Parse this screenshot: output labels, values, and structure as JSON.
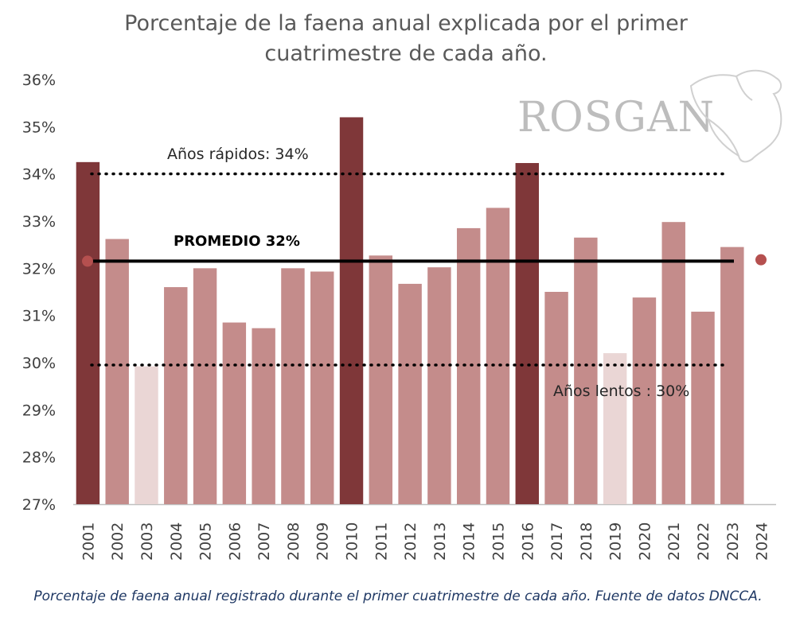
{
  "chart_data": {
    "type": "bar",
    "title": "Porcentaje de la faena anual explicada por el primer cuatrimestre de cada año.",
    "title_lines": [
      "Porcentaje de la faena anual explicada por el primer",
      "cuatrimestre de cada año."
    ],
    "categories": [
      "2001",
      "2002",
      "2003",
      "2004",
      "2005",
      "2006",
      "2007",
      "2008",
      "2009",
      "2010",
      "2011",
      "2012",
      "2013",
      "2014",
      "2015",
      "2016",
      "2017",
      "2018",
      "2019",
      "2020",
      "2021",
      "2022",
      "2023",
      "2024"
    ],
    "values": [
      34.25,
      32.62,
      29.92,
      31.6,
      32.0,
      30.85,
      30.73,
      32.0,
      31.93,
      35.2,
      32.27,
      31.67,
      32.02,
      32.85,
      33.28,
      34.23,
      31.5,
      32.65,
      30.2,
      31.38,
      32.98,
      31.08,
      32.45,
      null
    ],
    "bar_types": [
      "fast",
      "normal",
      "slow",
      "normal",
      "normal",
      "normal",
      "normal",
      "normal",
      "normal",
      "fast",
      "normal",
      "normal",
      "normal",
      "normal",
      "normal",
      "fast",
      "normal",
      "normal",
      "slow",
      "normal",
      "normal",
      "normal",
      "normal",
      "none"
    ],
    "ylim": [
      27,
      36
    ],
    "y_ticks": [
      "27%",
      "28%",
      "29%",
      "30%",
      "31%",
      "32%",
      "33%",
      "34%",
      "35%",
      "36%"
    ],
    "xlabel": "",
    "ylabel": "",
    "reference_lines": [
      {
        "label": "Años rápidos: 34%",
        "value": 34,
        "style": "dotted"
      },
      {
        "label": "PROMEDIO 32%",
        "value": 32.15,
        "style": "solid"
      },
      {
        "label": "Años lentos : 30%",
        "value": 29.95,
        "style": "dotted"
      }
    ],
    "markers": [
      {
        "category": "2001",
        "value": 32.15
      },
      {
        "category": "2024",
        "value": 32.18
      }
    ],
    "colors": {
      "fast": "#7f3739",
      "normal": "#c48c8b",
      "slow": "#ead6d5",
      "marker": "#b5504f",
      "average": "#000000"
    },
    "grid": false
  },
  "watermark": "ROSGAN",
  "caption": "Porcentaje de faena anual registrado durante el primer cuatrimestre de cada año. Fuente de datos DNCCA."
}
